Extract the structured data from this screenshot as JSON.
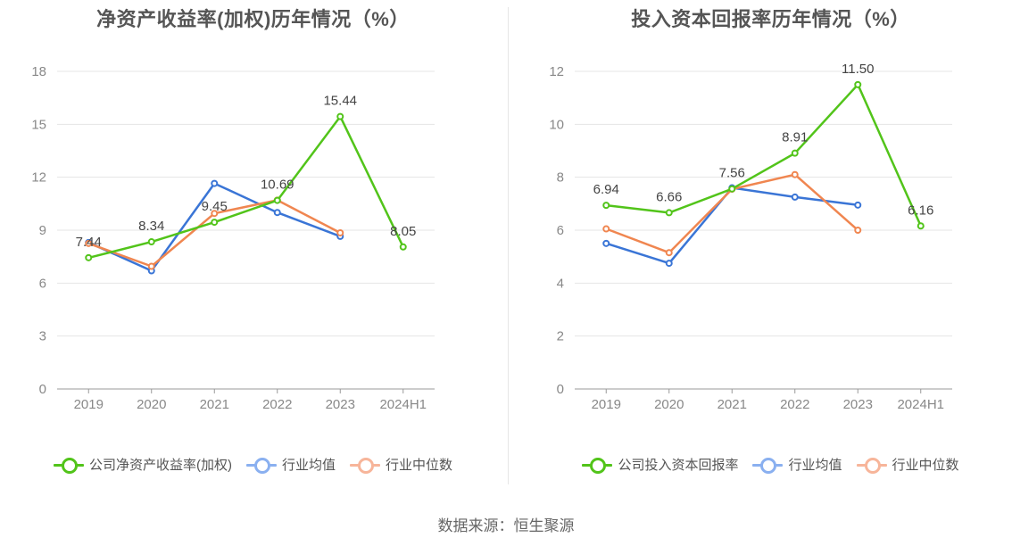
{
  "source": "数据来源：恒生聚源",
  "colors": {
    "company": "#52c41a",
    "industry_avg": "#3a75d6",
    "industry_median": "#f08650",
    "legend_avg": "#8ab0f0",
    "legend_median": "#f7b59a",
    "grid": "#e5e5e5",
    "axis": "#999999"
  },
  "chart_data": [
    {
      "type": "line",
      "title": "净资产收益率(加权)历年情况（%）",
      "categories": [
        "2019",
        "2020",
        "2021",
        "2022",
        "2023",
        "2024H1"
      ],
      "ylim": [
        0,
        18
      ],
      "yticks": [
        0,
        3,
        6,
        9,
        12,
        15,
        18
      ],
      "grid": true,
      "legend_position": "bottom",
      "series": [
        {
          "name": "公司净资产收益率(加权)",
          "color_key": "company",
          "values": [
            7.44,
            8.34,
            9.45,
            10.69,
            15.44,
            8.05
          ],
          "labels": [
            "7.44",
            "8.34",
            "9.45",
            "10.69",
            "15.44",
            "8.05"
          ]
        },
        {
          "name": "行业均值",
          "color_key": "industry_avg",
          "values": [
            8.3,
            6.7,
            11.65,
            10.0,
            8.65,
            null
          ]
        },
        {
          "name": "行业中位数",
          "color_key": "industry_median",
          "values": [
            8.25,
            6.95,
            9.95,
            10.7,
            8.85,
            null
          ]
        }
      ]
    },
    {
      "type": "line",
      "title": "投入资本回报率历年情况（%）",
      "categories": [
        "2019",
        "2020",
        "2021",
        "2022",
        "2023",
        "2024H1"
      ],
      "ylim": [
        0,
        12
      ],
      "yticks": [
        0,
        2,
        4,
        6,
        8,
        10,
        12
      ],
      "grid": true,
      "legend_position": "bottom",
      "series": [
        {
          "name": "公司投入资本回报率",
          "color_key": "company",
          "values": [
            6.94,
            6.66,
            7.56,
            8.91,
            11.5,
            6.16
          ],
          "labels": [
            "6.94",
            "6.66",
            "7.56",
            "8.91",
            "11.50",
            "6.16"
          ]
        },
        {
          "name": "行业均值",
          "color_key": "industry_avg",
          "values": [
            5.5,
            4.75,
            7.6,
            7.25,
            6.95,
            null
          ]
        },
        {
          "name": "行业中位数",
          "color_key": "industry_median",
          "values": [
            6.05,
            5.15,
            7.55,
            8.1,
            6.0,
            null
          ]
        }
      ]
    }
  ]
}
